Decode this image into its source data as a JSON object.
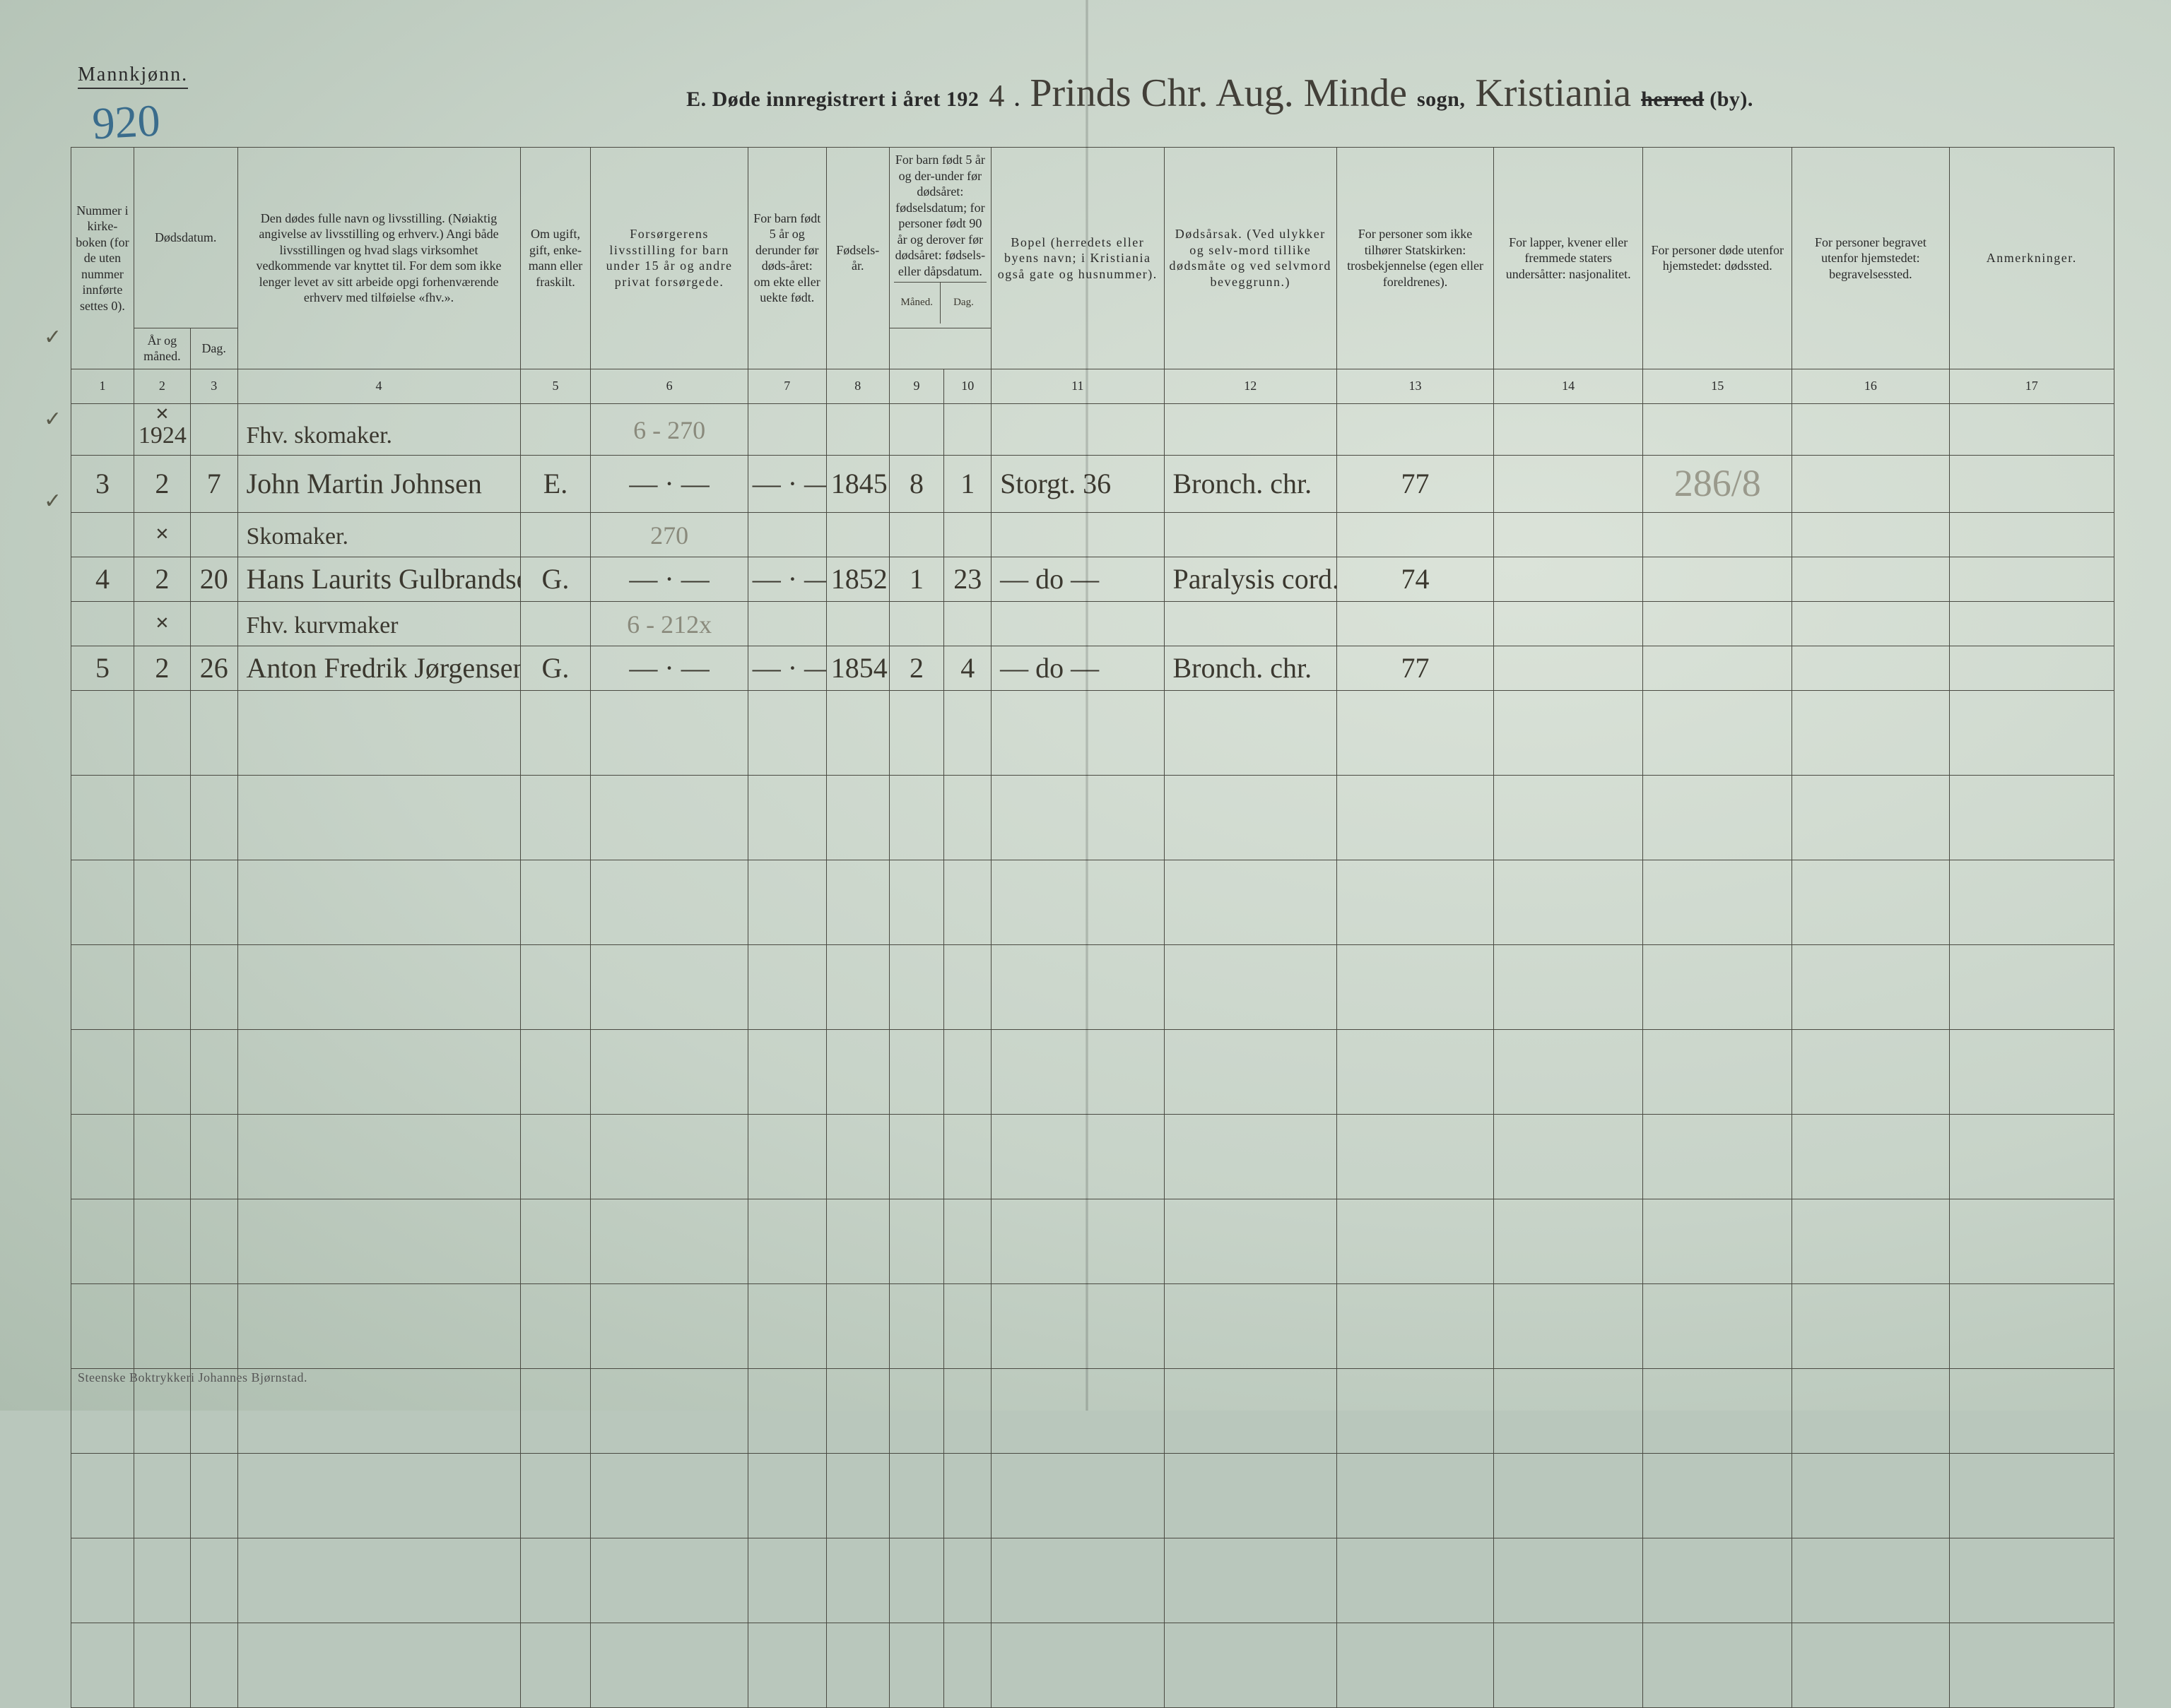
{
  "page": {
    "background_color": "#c7d3c8",
    "ink_color": "#2a2a2a",
    "pencil_color": "#8a8a7c",
    "blue_pencil_color": "#3a6c8c"
  },
  "header": {
    "mannkjonn": "Mannkjønn.",
    "page_number_hw": "920",
    "title_prefix": "E.  Døde innregistrert i året 192",
    "year_suffix_hw": "4",
    "period": ".",
    "parish_hw": "Prinds Chr. Aug. Minde",
    "sogn_label": "sogn,",
    "city_hw": "Kristiania",
    "herred_struck": "herred",
    "by_label": "(by)."
  },
  "columns": {
    "c1": "Nummer i kirke-boken (for de uten nummer innførte settes 0).",
    "c2_group": "Dødsdatum.",
    "c2a": "År og måned.",
    "c2b": "Dag.",
    "c4": "Den dødes fulle navn og livsstilling. (Nøiaktig angivelse av livsstilling og erhverv.) Angi både livsstillingen og hvad slags virksomhet vedkommende var knyttet til. For dem som ikke lenger levet av sitt arbeide opgi forhenværende erhverv med tilføielse «fhv.».",
    "c5": "Om ugift, gift, enke-mann eller fraskilt.",
    "c6": "Forsørgerens livsstilling for barn under 15 år og andre privat forsørgede.",
    "c7": "For barn født 5 år og derunder før døds-året: om ekte eller uekte født.",
    "c8": "Fødsels-år.",
    "c9_group": "For barn født 5 år og der-under før dødsåret: fødselsdatum; for personer født 90 år og derover før dødsåret: fødsels- eller dåpsdatum.",
    "c9a": "Måned.",
    "c9b": "Dag.",
    "c11": "Bopel (herredets eller byens navn; i Kristiania også gate og husnummer).",
    "c12": "Dødsårsak. (Ved ulykker og selv-mord tillike dødsmåte og ved selvmord beveggrunn.)",
    "c13": "For personer som ikke tilhører Statskirken: trosbekjennelse (egen eller foreldrenes).",
    "c14": "For lapper, kvener eller fremmede staters undersåtter: nasjonalitet.",
    "c15": "For personer døde utenfor hjemstedet: dødssted.",
    "c16": "For personer begravet utenfor hjemstedet: begravelsessted.",
    "c17": "Anmerkninger."
  },
  "colnums": [
    "1",
    "2",
    "3",
    "4",
    "5",
    "6",
    "7",
    "8",
    "9",
    "10",
    "11",
    "12",
    "13",
    "14",
    "15",
    "16",
    "17"
  ],
  "rows": [
    {
      "tick": "✓",
      "c1": "",
      "c2a_cross": "✕",
      "c2a_year": "1924",
      "c2b": "",
      "occupation": "Fhv. skomaker.",
      "c5": "",
      "c6_pencil": "6 - 270",
      "c7": "",
      "c8": "",
      "c9a": "",
      "c9b": "",
      "c11": "",
      "c12": "",
      "c13": "",
      "c14": "",
      "c15": "",
      "c16": "",
      "c17": ""
    },
    {
      "c1": "3",
      "c2a": "2",
      "c2b": "7",
      "name": "John Martin Johnsen",
      "c5": "E.",
      "c6": "— · —",
      "c7": "— · —",
      "c8": "1845",
      "c9a": "8",
      "c9b": "1",
      "c11": "Storgt. 36",
      "c12": "Bronch. chr.",
      "c13": "77",
      "c14": "",
      "c15_pencil": "286/8",
      "c16": "",
      "c17": ""
    },
    {
      "tick": "✓",
      "c1": "",
      "c2a_cross": "✕",
      "c2a": "",
      "c2b": "",
      "occupation": "Skomaker.",
      "c5": "",
      "c6_pencil": "270",
      "c7": "",
      "c8": "",
      "c9a": "",
      "c9b": "",
      "c11": "",
      "c12": "",
      "c13": "",
      "c14": "",
      "c15": "",
      "c16": "",
      "c17": ""
    },
    {
      "c1": "4",
      "c2a": "2",
      "c2b": "20",
      "name": "Hans Laurits Gulbrandsen",
      "c5": "G.",
      "c6": "— · —",
      "c7": "— · —",
      "c8": "1852",
      "c9a": "1",
      "c9b": "23",
      "c11": "— do —",
      "c12": "Paralysis cord.",
      "c13": "74",
      "c14": "",
      "c15": "",
      "c16": "",
      "c17": ""
    },
    {
      "tick": "✓",
      "c1": "",
      "c2a_cross": "✕",
      "c2a": "",
      "c2b": "",
      "occupation": "Fhv. kurvmaker",
      "c5": "",
      "c6_pencil": "6 - 212x",
      "c7": "",
      "c8": "",
      "c9a": "",
      "c9b": "",
      "c11": "",
      "c12": "",
      "c13": "",
      "c14": "",
      "c15": "",
      "c16": "",
      "c17": ""
    },
    {
      "c1": "5",
      "c2a": "2",
      "c2b": "26",
      "name": "Anton Fredrik Jørgensen",
      "c5": "G.",
      "c6": "— · —",
      "c7": "— · —",
      "c8": "1854",
      "c9a": "2",
      "c9b": "4",
      "c11": "— do —",
      "c12": "Bronch. chr.",
      "c13": "77",
      "c14": "",
      "c15": "",
      "c16": "",
      "c17": ""
    }
  ],
  "empty_row_count": 12,
  "footer": "Steenske Boktrykkeri Johannes Bjørnstad."
}
